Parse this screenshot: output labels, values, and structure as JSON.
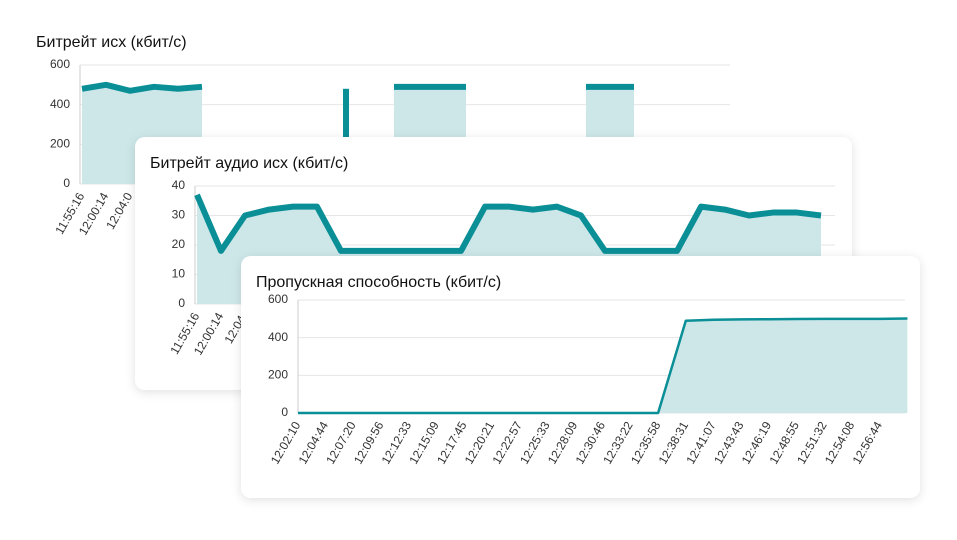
{
  "chart_data": [
    {
      "type": "line",
      "title": "Битрейт исх (кбит/с)",
      "color": "#0a8f96",
      "fill": "#cde7e9",
      "categories": [
        "11:55:16",
        "12:00:14",
        "12:04:0",
        null,
        null,
        null,
        null,
        null,
        null,
        null,
        null,
        null,
        null,
        null,
        null,
        null,
        null,
        null,
        null,
        null,
        null,
        null,
        null,
        null,
        null,
        null,
        null,
        null
      ],
      "values": [
        480,
        500,
        470,
        490,
        480,
        490,
        null,
        null,
        null,
        null,
        null,
        480,
        null,
        490,
        490,
        490,
        490,
        null,
        null,
        null,
        null,
        490,
        490,
        490,
        null,
        null,
        null,
        null
      ],
      "ylim": [
        0,
        600
      ],
      "yticks": [
        0,
        200,
        400,
        600
      ],
      "grid": true
    },
    {
      "type": "line",
      "title": "Битрейт аудио исх (кбит/с)",
      "color": "#0a8f96",
      "fill": "#cde7e9",
      "categories": [
        "11:55:16",
        "12:00:14",
        "12:04:",
        null,
        null,
        null,
        null,
        null,
        null,
        null,
        null,
        null,
        null,
        null,
        null,
        null,
        null,
        null,
        null,
        null,
        null,
        null,
        null,
        null,
        null,
        null,
        null
      ],
      "values": [
        37,
        18,
        30,
        32,
        33,
        33,
        18,
        18,
        18,
        18,
        18,
        18,
        33,
        33,
        32,
        33,
        30,
        18,
        18,
        18,
        18,
        33,
        32,
        30,
        31,
        31,
        30
      ],
      "ylim": [
        0,
        40
      ],
      "yticks": [
        0,
        10,
        20,
        30,
        40
      ],
      "grid": true
    },
    {
      "type": "line",
      "title": "Пропускная способность (кбит/с)",
      "color": "#0a8f96",
      "fill": "#cde7e9",
      "categories": [
        "12:02:10",
        "12:04:44",
        "12:07:20",
        "12:09:56",
        "12:12:33",
        "12:15:09",
        "12:17:45",
        "12:20:21",
        "12:22:57",
        "12:25:33",
        "12:28:09",
        "12:30:46",
        "12:33:22",
        "12:35:58",
        "12:38:31",
        "12:41:07",
        "12:43:43",
        "12:46:19",
        "12:48:55",
        "12:51:32",
        "12:54:08",
        "12:56:44",
        null
      ],
      "values": [
        0,
        0,
        0,
        0,
        0,
        0,
        0,
        0,
        0,
        0,
        0,
        0,
        0,
        0,
        490,
        495,
        497,
        498,
        499,
        500,
        500,
        500,
        502
      ],
      "ylim": [
        0,
        600
      ],
      "yticks": [
        0,
        200,
        400,
        600
      ],
      "grid": true
    }
  ]
}
